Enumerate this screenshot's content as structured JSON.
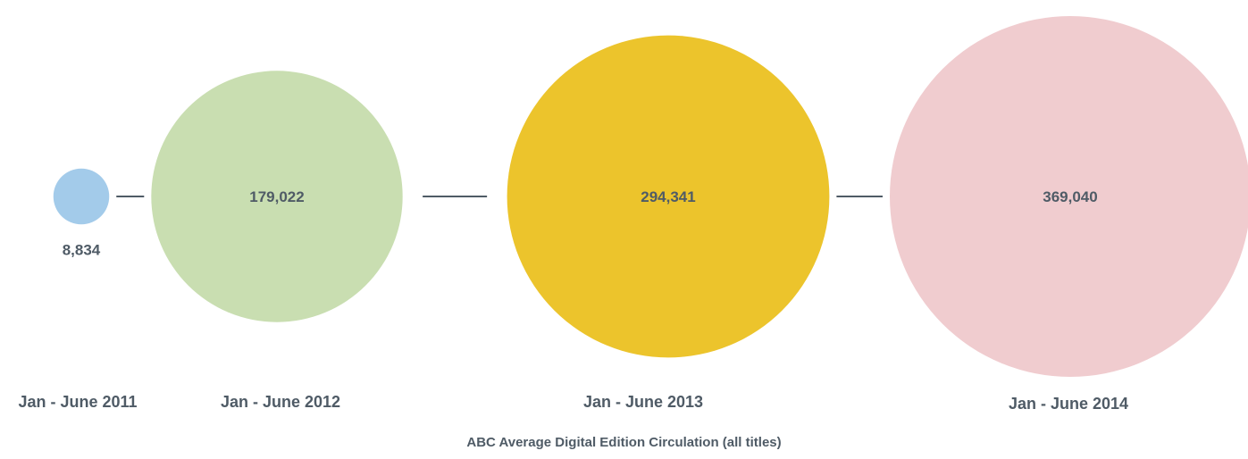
{
  "chart_data": {
    "type": "bubble",
    "title": "ABC Average Digital Edition Circulation (all titles)",
    "categories": [
      "Jan - June 2011",
      "Jan - June 2012",
      "Jan - June 2013",
      "Jan - June 2014"
    ],
    "values": [
      8834,
      179022,
      294341,
      369040
    ],
    "value_labels": [
      "8,834",
      "179,022",
      "294,341",
      "369,040"
    ],
    "colors": [
      "#a3cbea",
      "#c9deb1",
      "#ecc42c",
      "#f0cccf"
    ],
    "connector_color": "#4f5b66",
    "label_color": "#4f5b66",
    "legend": "none",
    "grid": false
  }
}
